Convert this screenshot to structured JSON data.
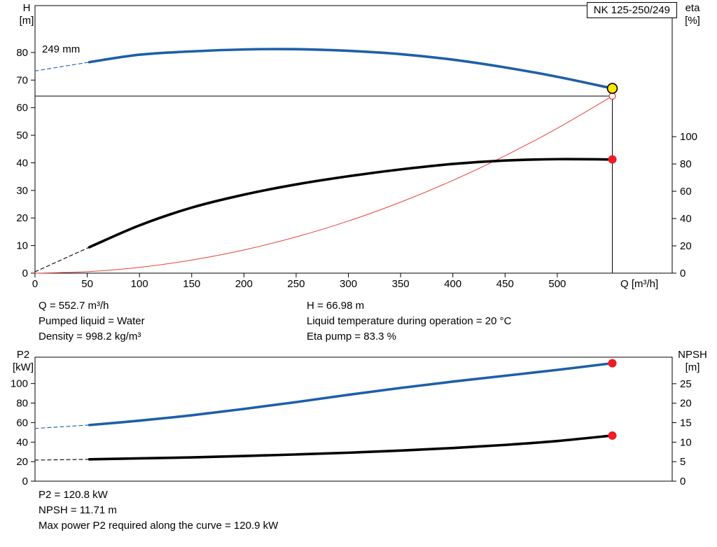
{
  "model_label": "NK 125-250/249",
  "impeller_diameter_label": "249 mm",
  "axes_labels": {
    "top_left_line1": "H",
    "top_left_line2": "[m]",
    "top_right_line1": "eta",
    "top_right_line2": "[%]",
    "bottom_left_line1": "P2",
    "bottom_left_line2": "[kW]",
    "bottom_right_line1": "NPSH",
    "bottom_right_line2": "[m]"
  },
  "info_top_left": [
    "Q = 552.7 m³/h",
    "Pumped liquid = Water",
    "Density = 998.2 kg/m³"
  ],
  "info_top_right": [
    "H = 66.98 m",
    "Liquid temperature during operation = 20 °C",
    "Eta pump = 83.3 %"
  ],
  "info_bottom": [
    "P2 = 120.8 kW",
    "NPSH = 11.71 m",
    "Max power P2 required along the curve = 120.9 kW"
  ],
  "chart_data": [
    {
      "type": "line",
      "title": "NK 125-250/249",
      "x": {
        "label": "Q [m³/h]",
        "min": 0,
        "max": 610,
        "ticks": [
          0,
          50,
          100,
          150,
          200,
          250,
          300,
          350,
          400,
          450,
          500
        ]
      },
      "y_left": {
        "label": "H [m]",
        "min": 0,
        "max": 97,
        "ticks": [
          0,
          10,
          20,
          30,
          40,
          50,
          60,
          70,
          80
        ]
      },
      "y_right": {
        "label": "eta [%]",
        "min": 0,
        "max": 196,
        "ticks": [
          0,
          20,
          40,
          60,
          80,
          100
        ]
      },
      "crosshair": {
        "q": 552.7,
        "h": 64.2
      },
      "series": [
        {
          "name": "system-curve",
          "axis": "left",
          "style": "thin",
          "color": "#e8403c",
          "points": [
            [
              0,
              0
            ],
            [
              50,
              0.53
            ],
            [
              100,
              2.1
            ],
            [
              150,
              4.73
            ],
            [
              200,
              8.4
            ],
            [
              250,
              13.13
            ],
            [
              300,
              18.9
            ],
            [
              350,
              25.74
            ],
            [
              400,
              33.62
            ],
            [
              450,
              42.55
            ],
            [
              500,
              52.53
            ],
            [
              552.7,
              64.2
            ]
          ]
        },
        {
          "name": "eta-curve-dashed",
          "axis": "right",
          "style": "dashed",
          "color": "#000000",
          "points": [
            [
              0,
              1
            ],
            [
              52,
              19
            ]
          ]
        },
        {
          "name": "eta-curve",
          "axis": "right",
          "style": "thick",
          "color": "#000000",
          "points": [
            [
              52,
              19
            ],
            [
              100,
              35
            ],
            [
              150,
              48
            ],
            [
              200,
              57.5
            ],
            [
              250,
              65
            ],
            [
              300,
              71
            ],
            [
              350,
              76
            ],
            [
              400,
              80
            ],
            [
              450,
              82.5
            ],
            [
              500,
              83.5
            ],
            [
              552.7,
              83.3
            ]
          ]
        },
        {
          "name": "head-curve-dashed",
          "axis": "left",
          "style": "dashed",
          "color": "#1e5fa8",
          "points": [
            [
              0,
              73.3
            ],
            [
              52,
              76.5
            ]
          ]
        },
        {
          "name": "head-curve",
          "axis": "left",
          "style": "thick",
          "color": "#1e5fa8",
          "points": [
            [
              52,
              76.5
            ],
            [
              100,
              79.2
            ],
            [
              150,
              80.4
            ],
            [
              200,
              81.1
            ],
            [
              250,
              81.2
            ],
            [
              300,
              80.6
            ],
            [
              350,
              79.4
            ],
            [
              400,
              77.4
            ],
            [
              450,
              74.6
            ],
            [
              500,
              71.2
            ],
            [
              552.7,
              66.98
            ]
          ]
        }
      ],
      "markers": [
        {
          "name": "system-duty-marker",
          "axis": "left",
          "q": 552.7,
          "v": 64.2,
          "r": 4.5,
          "fill": "#ffffff",
          "stroke": "#e8403c",
          "stroke_width": 1.3
        },
        {
          "name": "head-duty-marker",
          "axis": "left",
          "q": 552.7,
          "v": 66.98,
          "r": 7,
          "fill": "#ffe600",
          "stroke": "#000000",
          "stroke_width": 1.6
        },
        {
          "name": "eta-duty-marker",
          "axis": "right",
          "q": 552.7,
          "v": 83.3,
          "r": 6,
          "fill": "#ee1c25",
          "stroke": "none",
          "stroke_width": 0
        }
      ]
    },
    {
      "type": "line",
      "title": "",
      "x": {
        "label": "",
        "min": 0,
        "max": 610,
        "ticks": []
      },
      "y_left": {
        "label": "P2 [kW]",
        "min": 0,
        "max": 127,
        "ticks": [
          0,
          20,
          40,
          60,
          80,
          100
        ]
      },
      "y_right": {
        "label": "NPSH [m]",
        "min": 0,
        "max": 31.8,
        "ticks": [
          0,
          5,
          10,
          15,
          20,
          25
        ]
      },
      "series": [
        {
          "name": "p2-curve-dashed",
          "axis": "left",
          "style": "dashed",
          "color": "#1e5fa8",
          "points": [
            [
              0,
              54
            ],
            [
              52,
              57.5
            ]
          ]
        },
        {
          "name": "p2-curve",
          "axis": "left",
          "style": "thick",
          "color": "#1e5fa8",
          "points": [
            [
              52,
              57.5
            ],
            [
              100,
              62
            ],
            [
              150,
              67.5
            ],
            [
              200,
              74
            ],
            [
              250,
              81
            ],
            [
              300,
              88.5
            ],
            [
              350,
              95.5
            ],
            [
              400,
              102
            ],
            [
              450,
              108
            ],
            [
              500,
              114
            ],
            [
              552.7,
              120.8
            ]
          ]
        },
        {
          "name": "npsh-curve-dashed",
          "axis": "right",
          "style": "dashed",
          "color": "#000000",
          "points": [
            [
              0,
              5.4
            ],
            [
              52,
              5.6
            ]
          ]
        },
        {
          "name": "npsh-curve",
          "axis": "right",
          "style": "thick",
          "color": "#000000",
          "points": [
            [
              52,
              5.6
            ],
            [
              100,
              5.85
            ],
            [
              150,
              6.1
            ],
            [
              200,
              6.45
            ],
            [
              250,
              6.85
            ],
            [
              300,
              7.3
            ],
            [
              350,
              7.85
            ],
            [
              400,
              8.5
            ],
            [
              450,
              9.3
            ],
            [
              500,
              10.3
            ],
            [
              552.7,
              11.71
            ]
          ]
        }
      ],
      "markers": [
        {
          "name": "p2-duty-marker",
          "axis": "left",
          "q": 552.7,
          "v": 120.8,
          "r": 6,
          "fill": "#ee1c25",
          "stroke": "none",
          "stroke_width": 0
        },
        {
          "name": "npsh-duty-marker",
          "axis": "right",
          "q": 552.7,
          "v": 11.71,
          "r": 6,
          "fill": "#ee1c25",
          "stroke": "none",
          "stroke_width": 0
        }
      ]
    }
  ]
}
